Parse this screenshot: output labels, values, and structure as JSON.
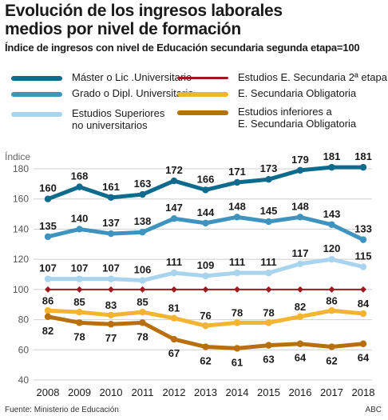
{
  "header": {
    "title_line1": "Evolución de los ingresos laborales",
    "title_line2": "medios por nivel de formación",
    "subtitle": "Índice de ingresos con nivel de Educación secundaria segunda etapa=100"
  },
  "footer": {
    "source": "Fuente: Ministerio de Educación",
    "credit": "ABC"
  },
  "chart_data": {
    "type": "line",
    "ylabel": "Índice",
    "xlabel": "",
    "ylim": [
      40,
      180
    ],
    "yticks": [
      40,
      60,
      80,
      100,
      120,
      140,
      160,
      180
    ],
    "grid": true,
    "legend_position": "top",
    "x": [
      2008,
      2009,
      2010,
      2011,
      2012,
      2013,
      2014,
      2015,
      2016,
      2017,
      2018
    ],
    "series": [
      {
        "name": "Máster o Lic .Universitario",
        "color": "#0f6b8e",
        "values": [
          160,
          168,
          161,
          163,
          172,
          166,
          171,
          173,
          179,
          181,
          181
        ]
      },
      {
        "name": "Grado o Dipl. Universitario",
        "color": "#3f94bf",
        "values": [
          135,
          140,
          137,
          138,
          147,
          144,
          148,
          145,
          148,
          143,
          133
        ]
      },
      {
        "name": "Estudios Superiores no universitarios",
        "color": "#a9d4ee",
        "values": [
          107,
          107,
          107,
          106,
          111,
          109,
          111,
          111,
          117,
          120,
          115
        ]
      },
      {
        "name": "Estudios E. Secundaria 2ª etapa",
        "color": "#9b1b20",
        "values": [
          100,
          100,
          100,
          100,
          100,
          100,
          100,
          100,
          100,
          100,
          100
        ]
      },
      {
        "name": "E. Secundaria Obligatoria",
        "color": "#f2b431",
        "values": [
          86,
          85,
          83,
          85,
          81,
          76,
          78,
          78,
          82,
          86,
          84
        ]
      },
      {
        "name": "Estudios inferiores a E. Secundaria Obligatoria",
        "color": "#b8700f",
        "values": [
          82,
          78,
          77,
          78,
          67,
          62,
          61,
          63,
          64,
          62,
          64
        ]
      }
    ]
  }
}
